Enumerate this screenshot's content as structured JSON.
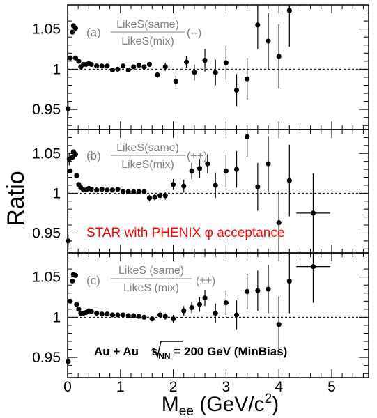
{
  "chart_data": {
    "type": "scatter",
    "ylabel": "Ratio",
    "xlabel": {
      "main": "M",
      "main_sub": "ee",
      "unit_pre": " (GeV/c",
      "unit_sup": "2",
      "unit_post": ")"
    },
    "xlim": [
      0,
      5.7
    ],
    "ylim": [
      0.925,
      1.08
    ],
    "x_ticks": [
      "0",
      "1",
      "2",
      "3",
      "4",
      "5"
    ],
    "y_ticks": [
      "0.95",
      "1",
      "1.05"
    ],
    "reference_line": 1,
    "colors": {
      "points": "#000000",
      "annotation": "#ff0000",
      "panel_label": "#808080",
      "frame": "#000000"
    },
    "annotation": "STAR with PHENIX φ acceptance",
    "system": {
      "prefix": "Au + Au ",
      "s": "s",
      "sub": "NN",
      "suffix": " = 200 GeV (MinBias)"
    },
    "panels": [
      {
        "id": "a",
        "tag": "(a)",
        "numerator": "LikeS(same)",
        "denominator": "LikeS(mix)",
        "sign": "(--)",
        "points": [
          {
            "x": 0.01,
            "y": 0.951,
            "yerr": 0.008
          },
          {
            "x": 0.05,
            "y": 1.014
          },
          {
            "x": 0.09,
            "y": 1.046
          },
          {
            "x": 0.11,
            "y": 1.054
          },
          {
            "x": 0.15,
            "y": 1.051
          },
          {
            "x": 0.15,
            "y": 1.014
          },
          {
            "x": 0.21,
            "y": 1.01
          },
          {
            "x": 0.25,
            "y": 1.003
          },
          {
            "x": 0.3,
            "y": 1.006
          },
          {
            "x": 0.35,
            "y": 1.006
          },
          {
            "x": 0.4,
            "y": 1.007
          },
          {
            "x": 0.45,
            "y": 1.006
          },
          {
            "x": 0.55,
            "y": 1.004
          },
          {
            "x": 0.65,
            "y": 1.004
          },
          {
            "x": 0.75,
            "y": 1.004
          },
          {
            "x": 0.85,
            "y": 0.999
          },
          {
            "x": 0.95,
            "y": 1.0
          },
          {
            "x": 1.05,
            "y": 1.004
          },
          {
            "x": 1.15,
            "y": 0.999
          },
          {
            "x": 1.25,
            "y": 1.003
          },
          {
            "x": 1.35,
            "y": 1.005
          },
          {
            "x": 1.45,
            "y": 1.003
          },
          {
            "x": 1.55,
            "y": 1.006
          },
          {
            "x": 1.7,
            "y": 0.993,
            "yerr": 0.004
          },
          {
            "x": 1.85,
            "y": 1.003,
            "yerr": 0.005
          },
          {
            "x": 2.05,
            "y": 0.985,
            "yerr": 0.007
          },
          {
            "x": 2.25,
            "y": 1.009,
            "yerr": 0.007
          },
          {
            "x": 2.4,
            "y": 0.996,
            "yerr": 0.01
          },
          {
            "x": 2.6,
            "y": 1.011,
            "yerr": 0.014
          },
          {
            "x": 2.8,
            "y": 0.996,
            "yerr": 0.016
          },
          {
            "x": 3.0,
            "y": 1.008,
            "yerr": 0.021
          },
          {
            "x": 3.2,
            "y": 0.974,
            "yerr": 0.02
          },
          {
            "x": 3.4,
            "y": 0.988,
            "yerr": 0.026
          },
          {
            "x": 3.6,
            "y": 1.055,
            "yerr": 0.03
          },
          {
            "x": 3.8,
            "y": 1.035,
            "yerr": 0.035
          },
          {
            "x": 4.0,
            "y": 1.016,
            "yerr": 0.04
          },
          {
            "x": 4.2,
            "y": 1.073,
            "yerr": 0.045
          }
        ]
      },
      {
        "id": "b",
        "tag": "(b)",
        "numerator": "LikeS(same)",
        "denominator": "LikeS(mix)",
        "sign": "(++)",
        "points": [
          {
            "x": 0.01,
            "y": 0.94,
            "yerr": 0.008
          },
          {
            "x": 0.03,
            "y": 1.043,
            "yerr": 0.008
          },
          {
            "x": 0.05,
            "y": 1.028
          },
          {
            "x": 0.09,
            "y": 1.045
          },
          {
            "x": 0.11,
            "y": 1.052
          },
          {
            "x": 0.15,
            "y": 1.049
          },
          {
            "x": 0.17,
            "y": 1.022
          },
          {
            "x": 0.21,
            "y": 1.011
          },
          {
            "x": 0.25,
            "y": 1.007
          },
          {
            "x": 0.3,
            "y": 1.004
          },
          {
            "x": 0.35,
            "y": 1.004
          },
          {
            "x": 0.4,
            "y": 1.006
          },
          {
            "x": 0.45,
            "y": 1.005
          },
          {
            "x": 0.55,
            "y": 1.004
          },
          {
            "x": 0.65,
            "y": 1.005
          },
          {
            "x": 0.75,
            "y": 1.004
          },
          {
            "x": 0.85,
            "y": 1.004
          },
          {
            "x": 0.95,
            "y": 1.005
          },
          {
            "x": 1.05,
            "y": 1.002
          },
          {
            "x": 1.15,
            "y": 1.002
          },
          {
            "x": 1.25,
            "y": 1.002
          },
          {
            "x": 1.35,
            "y": 1.002
          },
          {
            "x": 1.45,
            "y": 1.002
          },
          {
            "x": 1.55,
            "y": 0.994,
            "yerr": 0.004
          },
          {
            "x": 1.65,
            "y": 0.995,
            "yerr": 0.004
          },
          {
            "x": 1.75,
            "y": 0.997,
            "yerr": 0.005
          },
          {
            "x": 1.85,
            "y": 0.997,
            "yerr": 0.005
          },
          {
            "x": 2.0,
            "y": 1.011,
            "yerr": 0.007
          },
          {
            "x": 2.2,
            "y": 1.009,
            "yerr": 0.008
          },
          {
            "x": 2.35,
            "y": 1.028,
            "yerr": 0.01
          },
          {
            "x": 2.5,
            "y": 1.031,
            "yerr": 0.012
          },
          {
            "x": 2.65,
            "y": 1.037,
            "yerr": 0.012
          },
          {
            "x": 2.8,
            "y": 1.01,
            "yerr": 0.016
          },
          {
            "x": 3.0,
            "y": 1.028,
            "yerr": 0.02
          },
          {
            "x": 3.2,
            "y": 1.03,
            "yerr": 0.023
          },
          {
            "x": 3.4,
            "y": 1.071,
            "yerr": 0.025
          },
          {
            "x": 3.6,
            "y": 1.008,
            "yerr": 0.03
          },
          {
            "x": 3.8,
            "y": 1.037,
            "yerr": 0.035
          },
          {
            "x": 4.0,
            "y": 0.963,
            "yerr": 0.04
          },
          {
            "x": 4.2,
            "y": 1.016,
            "yerr": 0.045
          },
          {
            "x": 4.65,
            "y": 0.975,
            "xerr": 0.32,
            "yerr": 0.05
          }
        ]
      },
      {
        "id": "c",
        "tag": "(c)",
        "numerator": "LikeS (same)",
        "denominator": "LikeS (mix)",
        "sign": "(±±)",
        "points": [
          {
            "x": 0.01,
            "y": 0.945,
            "yerr": 0.005
          },
          {
            "x": 0.05,
            "y": 1.02
          },
          {
            "x": 0.09,
            "y": 1.045
          },
          {
            "x": 0.11,
            "y": 1.053
          },
          {
            "x": 0.15,
            "y": 1.052
          },
          {
            "x": 0.17,
            "y": 1.016
          },
          {
            "x": 0.21,
            "y": 1.01
          },
          {
            "x": 0.25,
            "y": 1.005
          },
          {
            "x": 0.3,
            "y": 1.005
          },
          {
            "x": 0.35,
            "y": 1.006
          },
          {
            "x": 0.4,
            "y": 1.008
          },
          {
            "x": 0.45,
            "y": 1.007
          },
          {
            "x": 0.55,
            "y": 1.005
          },
          {
            "x": 0.65,
            "y": 1.004
          },
          {
            "x": 0.75,
            "y": 1.004
          },
          {
            "x": 0.85,
            "y": 1.003
          },
          {
            "x": 0.95,
            "y": 1.003
          },
          {
            "x": 1.05,
            "y": 1.003
          },
          {
            "x": 1.15,
            "y": 1.002
          },
          {
            "x": 1.25,
            "y": 1.002
          },
          {
            "x": 1.35,
            "y": 1.001
          },
          {
            "x": 1.45,
            "y": 1.0
          },
          {
            "x": 1.6,
            "y": 0.998,
            "yerr": 0.003
          },
          {
            "x": 1.75,
            "y": 1.003,
            "yerr": 0.004
          },
          {
            "x": 1.85,
            "y": 1.001,
            "yerr": 0.004
          },
          {
            "x": 2.0,
            "y": 0.998,
            "yerr": 0.005
          },
          {
            "x": 2.2,
            "y": 1.008,
            "yerr": 0.006
          },
          {
            "x": 2.35,
            "y": 1.012,
            "yerr": 0.007
          },
          {
            "x": 2.5,
            "y": 1.016,
            "yerr": 0.009
          },
          {
            "x": 2.6,
            "y": 1.024,
            "yerr": 0.01
          },
          {
            "x": 2.8,
            "y": 1.005,
            "yerr": 0.012
          },
          {
            "x": 3.0,
            "y": 1.018,
            "yerr": 0.015
          },
          {
            "x": 3.2,
            "y": 1.003,
            "yerr": 0.018
          },
          {
            "x": 3.4,
            "y": 1.032,
            "yerr": 0.022
          },
          {
            "x": 3.6,
            "y": 1.033,
            "yerr": 0.025
          },
          {
            "x": 3.8,
            "y": 1.035,
            "yerr": 0.03
          },
          {
            "x": 4.0,
            "y": 0.991,
            "yerr": 0.035
          },
          {
            "x": 4.2,
            "y": 1.045,
            "yerr": 0.04
          },
          {
            "x": 4.65,
            "y": 1.063,
            "xerr": 0.32,
            "yerr": 0.045
          }
        ]
      }
    ]
  }
}
